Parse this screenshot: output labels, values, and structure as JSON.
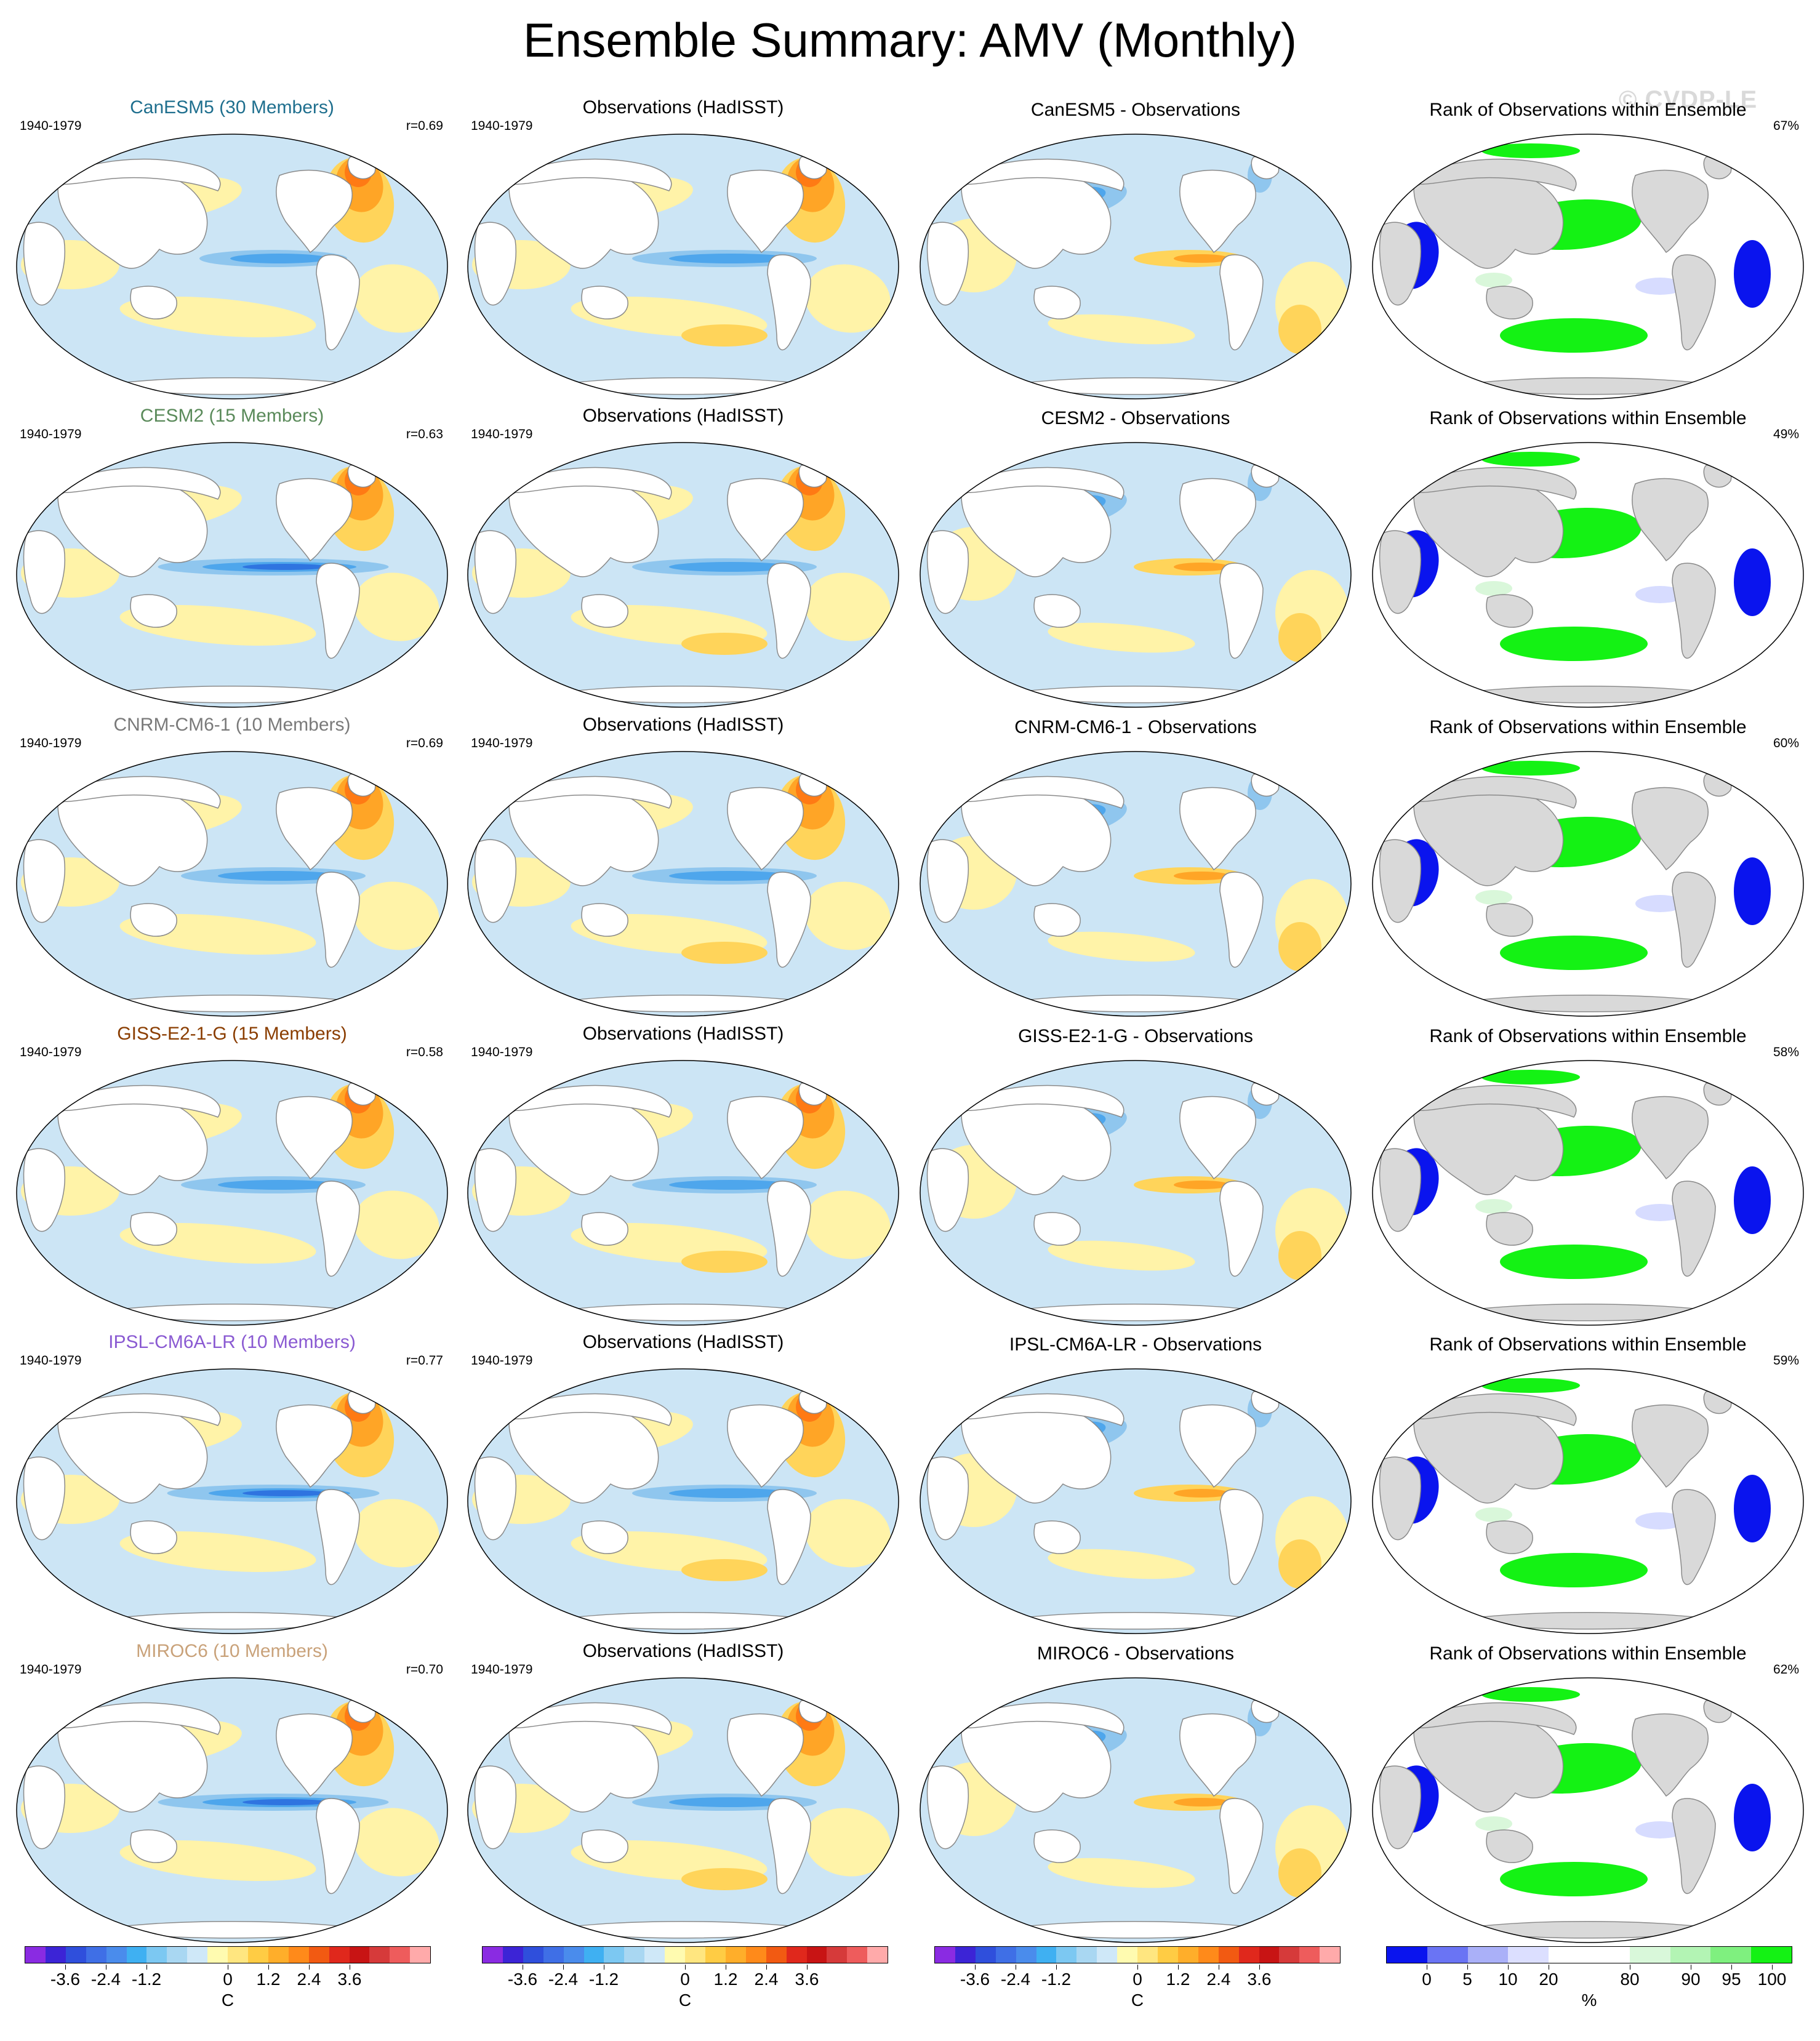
{
  "title": "Ensemble Summary: AMV (Monthly)",
  "watermark": "© CVDP-LE",
  "colors": {
    "ocean_base": "#bfdcf0",
    "land": "#ffffff",
    "land_gray": "#d9d9d9",
    "coast": "#8a8a8a",
    "warm_1": "#fff3a8",
    "warm_2": "#ffd45a",
    "warm_3": "#ffa526",
    "warm_4": "#ff7a14",
    "warm_5": "#e0281c",
    "cool_1": "#cce5f5",
    "cool_2": "#8fc6ee",
    "cool_3": "#4ea6ec",
    "cool_4": "#2f74e0",
    "rank_low": "#0a14ee",
    "rank_mid": "#ffffff",
    "rank_high": "#14f214",
    "rank_paleblue": "#d7dcff",
    "rank_palegreen": "#d9f7da"
  },
  "rows": [
    {
      "model_label": "CanESM5 (30 Members)",
      "model_color": "#1f6f8e",
      "period": "1940-1979",
      "r": "r=0.69",
      "obs_title": "Observations (HadISST)",
      "diff_title": "CanESM5 - Observations",
      "rank_title": "Rank of Observations within Ensemble",
      "rank_pct": "67%"
    },
    {
      "model_label": "CESM2 (15 Members)",
      "model_color": "#5a8a5a",
      "period": "1940-1979",
      "r": "r=0.63",
      "obs_title": "Observations (HadISST)",
      "diff_title": "CESM2 - Observations",
      "rank_title": "Rank of Observations within Ensemble",
      "rank_pct": "49%"
    },
    {
      "model_label": "CNRM-CM6-1 (10 Members)",
      "model_color": "#7a7a7a",
      "period": "1940-1979",
      "r": "r=0.69",
      "obs_title": "Observations (HadISST)",
      "diff_title": "CNRM-CM6-1 - Observations",
      "rank_title": "Rank of Observations within Ensemble",
      "rank_pct": "60%"
    },
    {
      "model_label": "GISS-E2-1-G (15 Members)",
      "model_color": "#8a3d00",
      "period": "1940-1979",
      "r": "r=0.58",
      "obs_title": "Observations (HadISST)",
      "diff_title": "GISS-E2-1-G - Observations",
      "rank_title": "Rank of Observations within Ensemble",
      "rank_pct": "58%"
    },
    {
      "model_label": "IPSL-CM6A-LR (10 Members)",
      "model_color": "#8a5ad2",
      "period": "1940-1979",
      "r": "r=0.77",
      "obs_title": "Observations (HadISST)",
      "diff_title": "IPSL-CM6A-LR - Observations",
      "rank_title": "Rank of Observations within Ensemble",
      "rank_pct": "59%"
    },
    {
      "model_label": "MIROC6 (10 Members)",
      "model_color": "#c9a27a",
      "period": "1940-1979",
      "r": "r=0.70",
      "obs_title": "Observations (HadISST)",
      "diff_title": "MIROC6 - Observations",
      "rank_title": "Rank of Observations within Ensemble",
      "rank_pct": "62%"
    }
  ],
  "colorbars": {
    "sst": {
      "colors": [
        "#8a2be2",
        "#3c24d6",
        "#2f4fdc",
        "#3f6fe6",
        "#4a8cec",
        "#3fb0f2",
        "#7cc8f2",
        "#a9d7f2",
        "#cfe8f8",
        "#fffbb0",
        "#ffe680",
        "#ffcc44",
        "#ffae2a",
        "#ff8a1a",
        "#f25a12",
        "#e0281c",
        "#c81414",
        "#d63a3a",
        "#ee5c5c",
        "#ffaaaa"
      ],
      "labels": [
        "-3.6",
        "-2.4",
        "-1.2",
        "0",
        "1.2",
        "2.4",
        "3.6"
      ],
      "label_positions": [
        0.1,
        0.2,
        0.3,
        0.5,
        0.6,
        0.7,
        0.8
      ],
      "unit": "C"
    },
    "rank": {
      "colors": [
        "#0a14ee",
        "#6a74f4",
        "#aab0f8",
        "#dcdfff",
        "#ffffff",
        "#ffffff",
        "#d9f8da",
        "#b3f4b4",
        "#7ff07f",
        "#14f214"
      ],
      "labels": [
        "0",
        "5",
        "10",
        "20",
        "80",
        "90",
        "95",
        "100"
      ],
      "label_positions": [
        0.1,
        0.2,
        0.3,
        0.4,
        0.6,
        0.75,
        0.85,
        0.95
      ],
      "unit": "%"
    }
  }
}
